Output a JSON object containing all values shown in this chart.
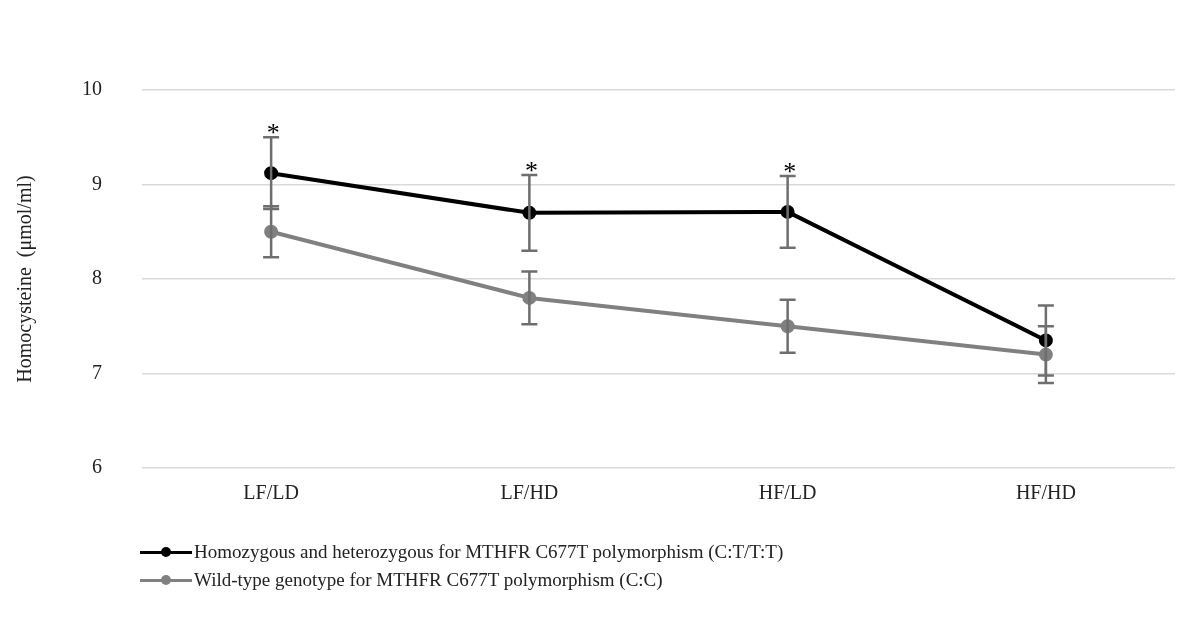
{
  "chart_data": {
    "type": "line",
    "ylabel": "Homocysteine  (μmol/ml)",
    "categories": [
      "LF/LD",
      "LF/HD",
      "HF/LD",
      "HF/HD"
    ],
    "series": [
      {
        "name": "Homozygous and heterozygous for MTHFR C677T polymorphism (C:T/T:T)",
        "color": "#000000",
        "values": [
          9.12,
          8.7,
          8.71,
          7.35
        ],
        "errors": [
          0.38,
          0.4,
          0.38,
          0.37
        ]
      },
      {
        "name": "Wild-type genotype for MTHFR C677T polymorphism (C:C)",
        "color": "#808080",
        "values": [
          8.5,
          7.8,
          7.5,
          7.2
        ],
        "errors": [
          0.27,
          0.28,
          0.28,
          0.3
        ]
      }
    ],
    "ylim": [
      6,
      10
    ],
    "yticks": [
      6,
      7,
      8,
      9,
      10
    ],
    "grid": "y",
    "legend": "bottom",
    "marker": "circle",
    "line_style": "solid",
    "annotations": [
      {
        "text": "*",
        "x": "LF/LD",
        "y": 9.5
      },
      {
        "text": "*",
        "x": "LF/HD",
        "y": 9.1
      },
      {
        "text": "*",
        "x": "HF/LD",
        "y": 9.09
      }
    ]
  }
}
